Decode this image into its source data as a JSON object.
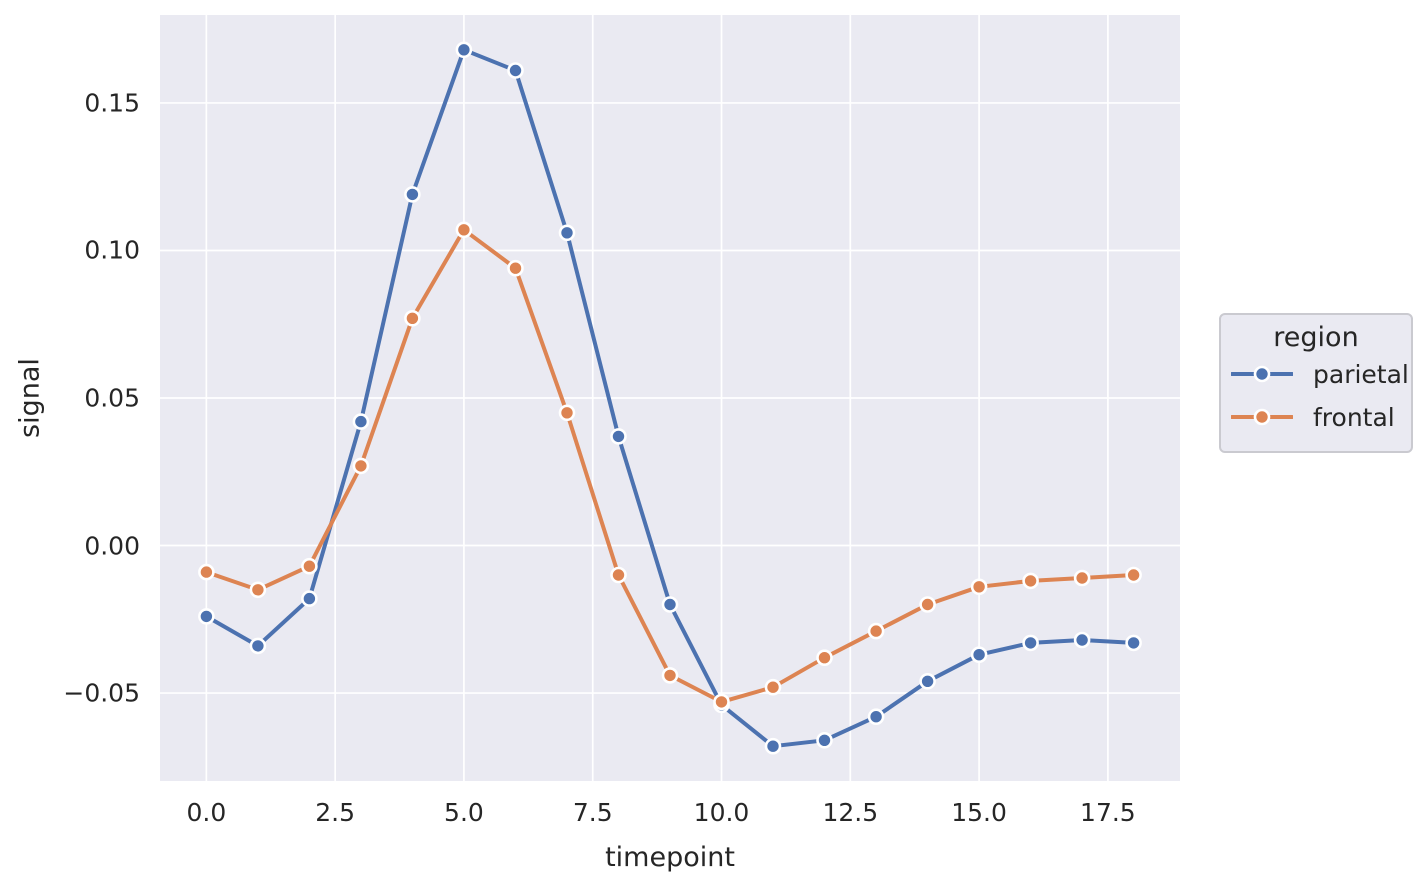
{
  "figure": {
    "background": "#ffffff",
    "plot_background": "#eaeaf2",
    "grid_color": "#ffffff",
    "text_color": "#262626",
    "legend_border_color": "#cacad0"
  },
  "chart_data": {
    "type": "line",
    "title": "",
    "xlabel": "timepoint",
    "ylabel": "signal",
    "grid": true,
    "xlim": [
      -0.9,
      18.9
    ],
    "ylim": [
      -0.0798,
      0.1798
    ],
    "x_ticks": [
      0.0,
      2.5,
      5.0,
      7.5,
      10.0,
      12.5,
      15.0,
      17.5
    ],
    "x_tick_labels": [
      "0.0",
      "2.5",
      "5.0",
      "7.5",
      "10.0",
      "12.5",
      "15.0",
      "17.5"
    ],
    "y_ticks": [
      0.15,
      0.1,
      0.05,
      0.0,
      -0.05
    ],
    "y_tick_labels": [
      "0.15",
      "0.10",
      "0.05",
      "0.00",
      "−0.05"
    ],
    "x": [
      0,
      1,
      2,
      3,
      4,
      5,
      6,
      7,
      8,
      9,
      10,
      11,
      12,
      13,
      14,
      15,
      16,
      17,
      18
    ],
    "series": [
      {
        "name": "parietal",
        "color": "#4c72b0",
        "values": [
          -0.024,
          -0.034,
          -0.018,
          0.042,
          0.119,
          0.168,
          0.161,
          0.106,
          0.037,
          -0.02,
          -0.054,
          -0.068,
          -0.066,
          -0.058,
          -0.046,
          -0.037,
          -0.033,
          -0.032,
          -0.033
        ]
      },
      {
        "name": "frontal",
        "color": "#dd8452",
        "values": [
          -0.009,
          -0.015,
          -0.007,
          0.027,
          0.077,
          0.107,
          0.094,
          0.045,
          -0.01,
          -0.044,
          -0.053,
          -0.048,
          -0.038,
          -0.029,
          -0.02,
          -0.014,
          -0.012,
          -0.011,
          -0.01
        ]
      }
    ],
    "legend": {
      "title": "region",
      "position": "outside-right",
      "entries": [
        "parietal",
        "frontal"
      ]
    }
  }
}
